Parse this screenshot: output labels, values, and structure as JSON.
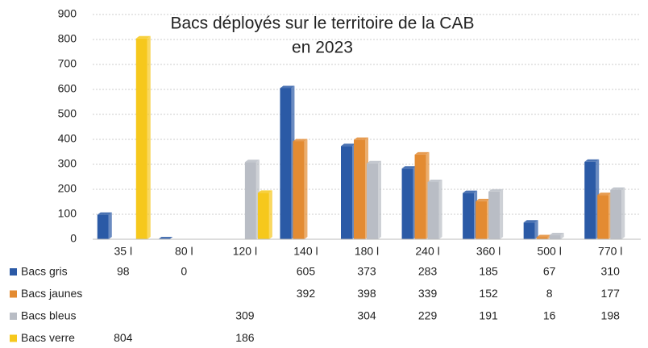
{
  "chart_data": {
    "type": "bar",
    "title": [
      "Bacs déployés sur le territoire de la CAB",
      "en 2023"
    ],
    "categories": [
      "35 l",
      "80 l",
      "120 l",
      "140 l",
      "180 l",
      "240 l",
      "360 l",
      "500 l",
      "770 l"
    ],
    "series": [
      {
        "name": "Bacs gris",
        "color": "#2b5aa6",
        "values": [
          98,
          0,
          null,
          605,
          373,
          283,
          185,
          67,
          310
        ]
      },
      {
        "name": "Bacs jaunes",
        "color": "#e38b32",
        "values": [
          null,
          null,
          null,
          392,
          398,
          339,
          152,
          8,
          177
        ]
      },
      {
        "name": "Bacs bleus",
        "color": "#b9bdc5",
        "values": [
          null,
          null,
          309,
          null,
          304,
          229,
          191,
          16,
          198
        ]
      },
      {
        "name": "Bacs verre",
        "color": "#f6c81c",
        "values": [
          804,
          null,
          186,
          null,
          null,
          null,
          null,
          null,
          null
        ]
      }
    ],
    "ylim": [
      0,
      900
    ],
    "yticks": [
      0,
      100,
      200,
      300,
      400,
      500,
      600,
      700,
      800,
      900
    ],
    "grid": true
  }
}
